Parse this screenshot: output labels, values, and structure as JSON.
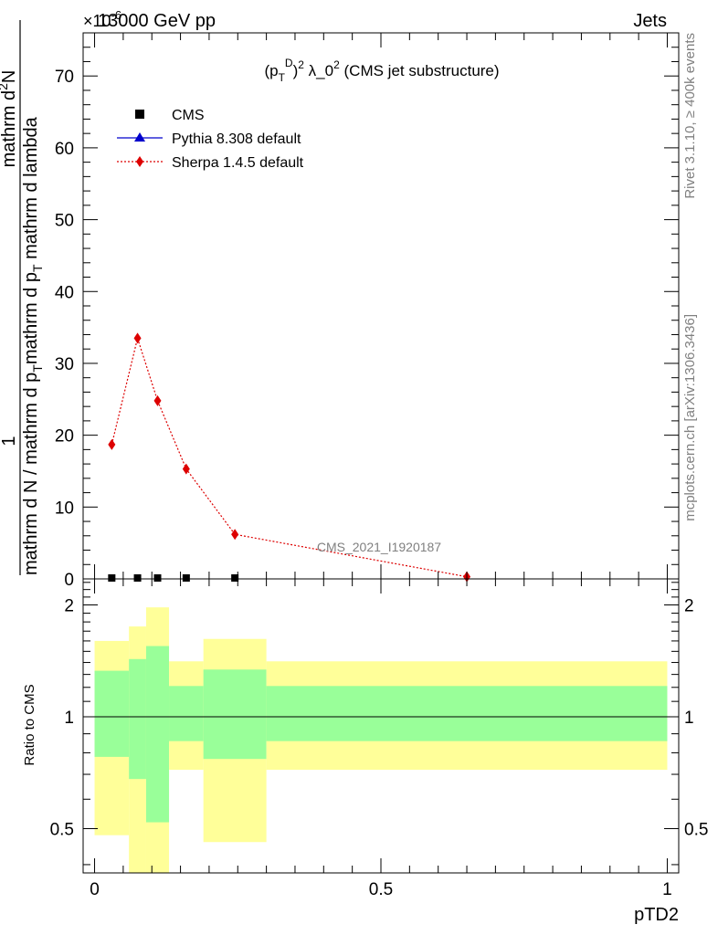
{
  "header": {
    "left": "13000 GeV pp",
    "right": "Jets",
    "multiplier": "×10",
    "multiplier_exp": "-6"
  },
  "side_labels": {
    "rivet": "Rivet 3.1.10, ≥ 400k events",
    "mcplots": "mcplots.cern.ch [arXiv:1306.3436]"
  },
  "chart_data": [
    {
      "type": "line",
      "title": "(p_T^D)^2 λ_0^2 (CMS jet substructure)",
      "watermark": "CMS_2021_I1920187",
      "ylabel": "1 / mathrm d N / mathrm d p_T mathrm d N / mathrm d p_T mathrm d lambda",
      "ylabel_parts": {
        "numerator": "1",
        "denominator": "mathrm d N / mathrm d p",
        "denominator_sub": "T",
        "rest_a": "mathrm d p",
        "rest_a_sub": "T",
        "rest_b": " mathrm d lambda",
        "top_num": "mathrm d",
        "top_num_sup": "2",
        "top_num_end": "N"
      },
      "ylim": [
        0,
        76
      ],
      "y_multiplier": "1e-6",
      "yticks": [
        0,
        10,
        20,
        30,
        40,
        50,
        60,
        70
      ],
      "xlim": [
        -0.02,
        1.02
      ],
      "legend": {
        "placement": "top-left",
        "entries": [
          "CMS",
          "Pythia 8.308 default",
          "Sherpa 1.4.5 default"
        ]
      },
      "series": [
        {
          "name": "CMS",
          "color": "#000000",
          "marker": "square",
          "x": [
            0.03,
            0.075,
            0.11,
            0.16,
            0.245
          ],
          "y": [
            0,
            0,
            0,
            0,
            0
          ]
        },
        {
          "name": "Pythia 8.308 default",
          "color": "#0000cc",
          "marker": "triangle",
          "x": [],
          "y": []
        },
        {
          "name": "Sherpa 1.4.5 default",
          "color": "#dd0000",
          "marker": "diamond",
          "x": [
            0.03,
            0.075,
            0.11,
            0.16,
            0.245,
            0.65
          ],
          "y": [
            18.7,
            33.5,
            24.8,
            15.3,
            6.2,
            0.3
          ]
        }
      ]
    },
    {
      "type": "area",
      "ylabel": "Ratio to CMS",
      "xlabel": "pTD2",
      "ylog": true,
      "ylim": [
        0.38,
        2.35
      ],
      "yticks": [
        0.5,
        1,
        2
      ],
      "ytick_labels": [
        "0.5",
        "1",
        "2"
      ],
      "xticks": [
        0,
        0.5,
        1
      ],
      "xtick_labels": [
        "0",
        "0.5",
        "1"
      ],
      "reference_line": 1,
      "bands": [
        {
          "x0": 0.0,
          "x1": 0.06,
          "yellow": [
            0.48,
            1.6
          ],
          "green": [
            0.78,
            1.33
          ]
        },
        {
          "x0": 0.06,
          "x1": 0.09,
          "yellow": [
            0.35,
            1.75
          ],
          "green": [
            0.68,
            1.43
          ]
        },
        {
          "x0": 0.09,
          "x1": 0.13,
          "yellow": [
            0.35,
            1.97
          ],
          "green": [
            0.52,
            1.55
          ]
        },
        {
          "x0": 0.13,
          "x1": 0.19,
          "yellow": [
            0.72,
            1.41
          ],
          "green": [
            0.86,
            1.21
          ]
        },
        {
          "x0": 0.19,
          "x1": 0.3,
          "yellow": [
            0.46,
            1.62
          ],
          "green": [
            0.77,
            1.34
          ]
        },
        {
          "x0": 0.3,
          "x1": 1.0,
          "yellow": [
            0.72,
            1.41
          ],
          "green": [
            0.86,
            1.21
          ]
        }
      ],
      "colors": {
        "yellow": "#ffff99",
        "green": "#99ff99"
      }
    }
  ]
}
